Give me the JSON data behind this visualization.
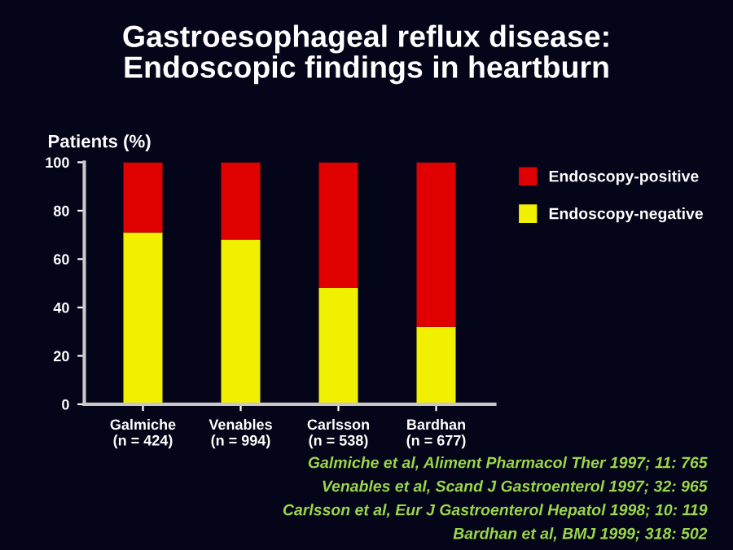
{
  "chart_data": {
    "type": "bar",
    "title": "Gastroesophageal reflux disease:\nEndoscopic findings in heartburn",
    "ylabel": "Patients (%)",
    "categories": [
      "Galmiche\n(n = 424)",
      "Venables\n(n = 994)",
      "Carlsson\n(n = 538)",
      "Bardhan\n(n = 677)"
    ],
    "stacked": true,
    "series": [
      {
        "name": "Endoscopy-negative",
        "color": "#f0f000",
        "values": [
          71,
          68,
          48,
          32
        ]
      },
      {
        "name": "Endoscopy-positive",
        "color": "#e00000",
        "values": [
          29,
          32,
          52,
          68
        ]
      }
    ],
    "ylim": [
      0,
      100
    ],
    "yticks": [
      0,
      20,
      40,
      60,
      80,
      100
    ],
    "grid": false,
    "legend": "top right",
    "annotations": [
      "Galmiche et al, Aliment Pharmacol Ther 1997; 11: 765",
      "Venables et al, Scand J Gastroenterol 1997; 32: 965",
      "Carlsson et al, Eur J Gastroenterol Hepatol 1998; 10: 119",
      "Bardhan et al, BMJ 1999; 318: 502"
    ]
  }
}
